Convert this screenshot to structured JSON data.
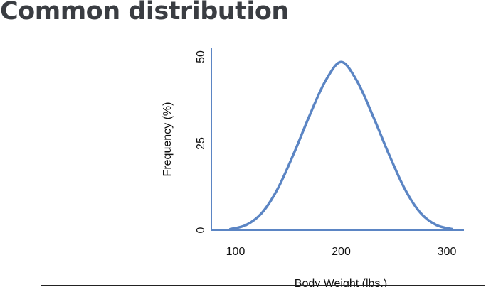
{
  "page": {
    "title": "Common distribution"
  },
  "chart_data": {
    "type": "line",
    "xlabel": "Body Weight (lbs.)",
    "ylabel": "Frequency (%)",
    "x_ticks": [
      100,
      200,
      300
    ],
    "y_ticks": [
      0,
      25,
      50
    ],
    "xlim": [
      80,
      315
    ],
    "ylim": [
      0,
      50
    ],
    "grid": false,
    "series": [
      {
        "color": "#5b85c4",
        "x": [
          95,
          110,
          125,
          140,
          155,
          170,
          185,
          200,
          215,
          230,
          245,
          260,
          275,
          290,
          305
        ],
        "y": [
          0.3,
          1.5,
          5,
          12,
          22,
          33,
          43,
          48.5,
          43,
          33,
          22,
          12,
          5,
          1.5,
          0.3
        ]
      }
    ]
  }
}
